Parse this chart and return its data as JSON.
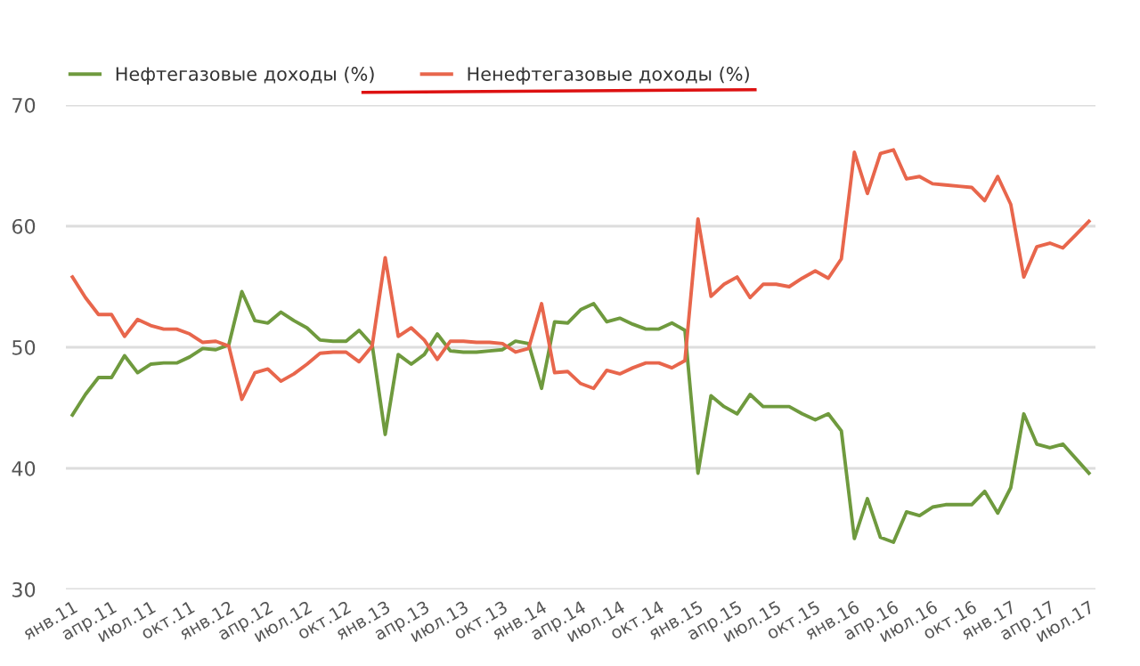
{
  "chart_data": {
    "type": "line",
    "categories": [
      "янв.11",
      null,
      null,
      "апр.11",
      null,
      null,
      "июл.11",
      null,
      null,
      "окт.11",
      null,
      null,
      "янв.12",
      null,
      null,
      "апр.12",
      null,
      null,
      "июл.12",
      null,
      null,
      "окт.12",
      null,
      null,
      "янв.13",
      null,
      null,
      "апр.13",
      null,
      null,
      "июл.13",
      null,
      null,
      "окт.13",
      null,
      null,
      "янв.14",
      null,
      null,
      "апр.14",
      null,
      null,
      "июл.14",
      null,
      null,
      "окт.14",
      null,
      null,
      "янв.15",
      null,
      null,
      "апр.15",
      null,
      null,
      "июл.15",
      null,
      null,
      "окт.15",
      null,
      null,
      "янв.16",
      null,
      null,
      "апр.16",
      null,
      null,
      "июл.16",
      null,
      null,
      "окт.16",
      null,
      null,
      "янв.17",
      null,
      null,
      "апр.17",
      null,
      null,
      "июл.17"
    ],
    "series": [
      {
        "name": "Нефтегазовые доходы (%)",
        "color": "#6f9a3e",
        "values": [
          44.4,
          46.1,
          47.5,
          47.5,
          49.3,
          47.9,
          48.6,
          48.7,
          48.7,
          49.2,
          49.9,
          49.8,
          50.2,
          54.6,
          52.2,
          52.0,
          52.9,
          52.2,
          51.6,
          50.6,
          50.5,
          50.5,
          51.4,
          50.2,
          42.8,
          49.4,
          48.6,
          49.4,
          51.1,
          49.7,
          49.6,
          49.6,
          49.7,
          49.8,
          50.5,
          50.3,
          46.6,
          52.1,
          52.0,
          53.1,
          53.6,
          52.1,
          52.4,
          51.9,
          51.5,
          51.5,
          52.0,
          51.4,
          39.6,
          46.0,
          45.1,
          44.5,
          46.1,
          45.1,
          45.1,
          45.1,
          44.5,
          44.0,
          44.5,
          43.1,
          34.2,
          37.5,
          34.3,
          33.9,
          36.4,
          36.1,
          36.8,
          37.0,
          37.0,
          37.0,
          38.1,
          36.3,
          38.4,
          44.5,
          42.0,
          41.7,
          42.0,
          40.8,
          39.6
        ]
      },
      {
        "name": "Ненефтегазовые доходы (%)",
        "color": "#e8664c",
        "values": [
          55.8,
          54.1,
          52.7,
          52.7,
          50.9,
          52.3,
          51.8,
          51.5,
          51.5,
          51.1,
          50.4,
          50.5,
          50.1,
          45.7,
          47.9,
          48.2,
          47.2,
          47.8,
          48.6,
          49.5,
          49.6,
          49.6,
          48.8,
          50.1,
          57.4,
          50.9,
          51.6,
          50.6,
          49.0,
          50.5,
          50.5,
          50.4,
          50.4,
          50.3,
          49.6,
          49.9,
          53.6,
          47.9,
          48.0,
          47.0,
          46.6,
          48.1,
          47.8,
          48.3,
          48.7,
          48.7,
          48.3,
          48.9,
          60.6,
          54.2,
          55.2,
          55.8,
          54.1,
          55.2,
          55.2,
          55.0,
          55.7,
          56.3,
          55.7,
          57.3,
          66.1,
          62.7,
          66.0,
          66.3,
          63.9,
          64.1,
          63.5,
          63.4,
          63.3,
          63.2,
          62.1,
          64.1,
          61.8,
          55.8,
          58.3,
          58.6,
          58.2,
          59.3,
          60.4
        ]
      }
    ],
    "ylim": [
      30,
      70
    ],
    "yticks": [
      30,
      40,
      50,
      60,
      70
    ],
    "grid": "y",
    "legend": "top left",
    "marker": "none",
    "line_style": "solid"
  }
}
